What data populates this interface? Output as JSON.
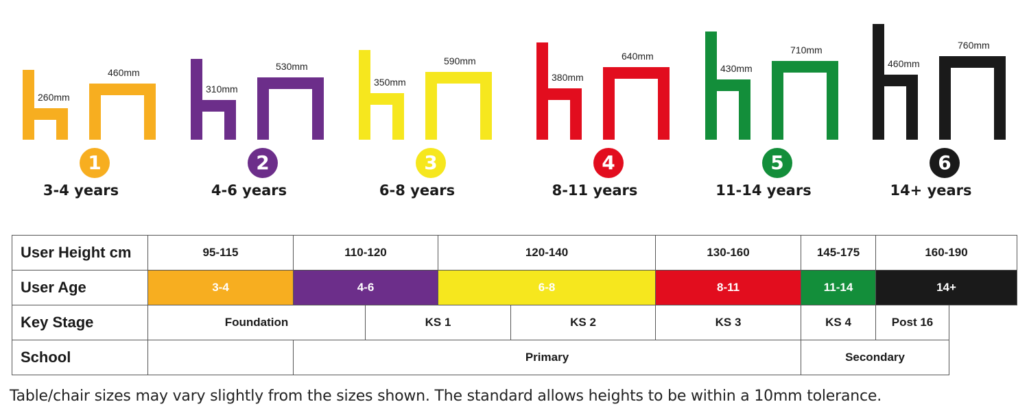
{
  "sizes": [
    {
      "number": "1",
      "age_caption": "3-4 years",
      "chair_label": "260mm",
      "table_label": "460mm",
      "chair_mm": 260,
      "table_mm": 460,
      "color": "#F7AE20"
    },
    {
      "number": "2",
      "age_caption": "4-6 years",
      "chair_label": "310mm",
      "table_label": "530mm",
      "chair_mm": 310,
      "table_mm": 530,
      "color": "#6C2E8A"
    },
    {
      "number": "3",
      "age_caption": "6-8 years",
      "chair_label": "350mm",
      "table_label": "590mm",
      "chair_mm": 350,
      "table_mm": 590,
      "color": "#F6E71E"
    },
    {
      "number": "4",
      "age_caption": "8-11 years",
      "chair_label": "380mm",
      "table_label": "640mm",
      "chair_mm": 380,
      "table_mm": 640,
      "color": "#E20D1E"
    },
    {
      "number": "5",
      "age_caption": "11-14 years",
      "chair_label": "430mm",
      "table_label": "710mm",
      "chair_mm": 430,
      "table_mm": 710,
      "color": "#138E3A"
    },
    {
      "number": "6",
      "age_caption": "14+ years",
      "chair_label": "460mm",
      "table_label": "760mm",
      "chair_mm": 460,
      "table_mm": 760,
      "color": "#1A1A1A"
    }
  ],
  "grid": {
    "user_height": {
      "label": "User Height cm",
      "values": [
        "95-115",
        "110-120",
        "120-140",
        "130-160",
        "145-175",
        "160-190"
      ]
    },
    "user_age": {
      "label": "User Age",
      "values": [
        "3-4",
        "4-6",
        "6-8",
        "8-11",
        "11-14",
        "14+"
      ],
      "colors": [
        "#F7AE20",
        "#6C2E8A",
        "#F6E71E",
        "#E20D1E",
        "#138E3A",
        "#1A1A1A"
      ]
    },
    "key_stage": {
      "label": "Key Stage",
      "values": [
        "Foundation",
        "KS 1",
        "KS 2",
        "KS 3",
        "KS 4",
        "Post 16"
      ]
    },
    "school": {
      "label": "School",
      "values": [
        "",
        "Primary",
        "Secondary"
      ]
    }
  },
  "note": "Table/chair sizes may vary slightly from the sizes shown. The standard allows heights to be within a 10mm tolerance."
}
